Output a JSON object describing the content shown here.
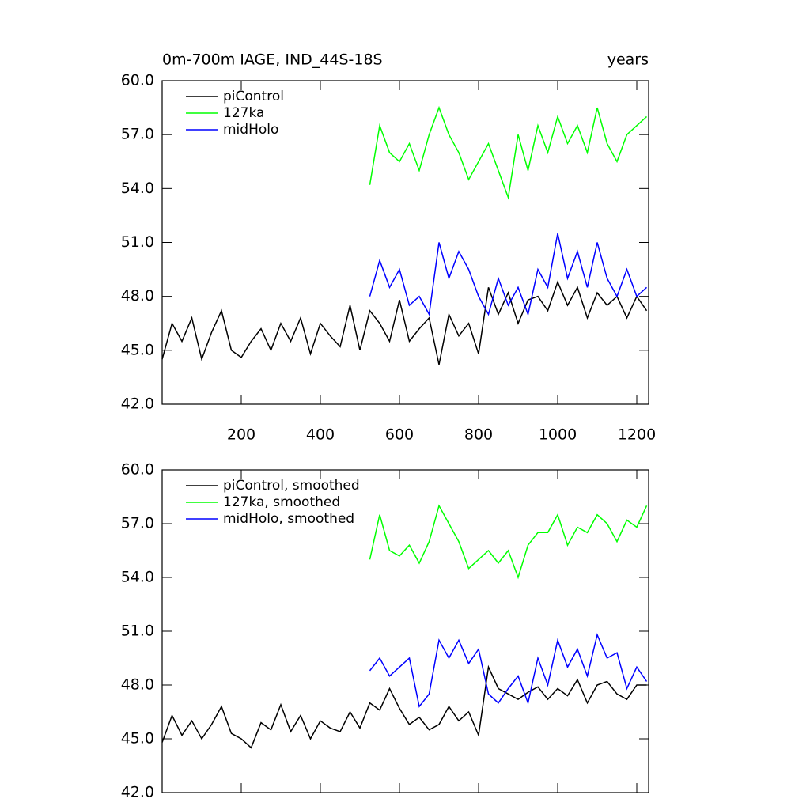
{
  "chart_data": [
    {
      "type": "line",
      "title": "0m-700m IAGE, IND_44S-18S",
      "right_title": "years",
      "x": [
        0,
        25,
        50,
        75,
        100,
        125,
        150,
        175,
        200,
        225,
        250,
        275,
        300,
        325,
        350,
        375,
        400,
        425,
        450,
        475,
        500,
        525,
        550,
        575,
        600,
        625,
        650,
        675,
        700,
        725,
        750,
        775,
        800,
        825,
        850,
        875,
        900,
        925,
        950,
        975,
        1000,
        1025,
        1050,
        1075,
        1100,
        1125,
        1150,
        1175,
        1200,
        1225
      ],
      "series": [
        {
          "name": "piControl",
          "color": "#000000",
          "values": [
            44.5,
            46.5,
            45.5,
            46.8,
            44.5,
            46.0,
            47.2,
            45.0,
            44.6,
            45.5,
            46.2,
            45.0,
            46.5,
            45.5,
            46.8,
            44.8,
            46.5,
            45.8,
            45.2,
            47.5,
            45.0,
            47.2,
            46.5,
            45.5,
            47.8,
            45.5,
            46.2,
            46.8,
            44.2,
            47.0,
            45.8,
            46.5,
            44.8,
            48.5,
            47.0,
            48.2,
            46.5,
            47.8,
            48.0,
            47.2,
            48.8,
            47.5,
            48.5,
            46.8,
            48.2,
            47.5,
            48.0,
            46.8,
            48.0,
            47.2
          ]
        },
        {
          "name": "127ka",
          "color": "#00ff00",
          "values": [
            null,
            null,
            null,
            null,
            null,
            null,
            null,
            null,
            null,
            null,
            null,
            null,
            null,
            null,
            null,
            null,
            null,
            null,
            null,
            null,
            null,
            54.2,
            57.5,
            56.0,
            55.5,
            56.5,
            55.0,
            57.0,
            58.5,
            57.0,
            56.0,
            54.5,
            55.5,
            56.5,
            55.0,
            53.5,
            57.0,
            55.0,
            57.5,
            56.0,
            58.0,
            56.5,
            57.5,
            56.0,
            58.5,
            56.5,
            55.5,
            57.0,
            57.5,
            58.0
          ]
        },
        {
          "name": "midHolo",
          "color": "#0000ff",
          "values": [
            null,
            null,
            null,
            null,
            null,
            null,
            null,
            null,
            null,
            null,
            null,
            null,
            null,
            null,
            null,
            null,
            null,
            null,
            null,
            null,
            null,
            48.0,
            50.0,
            48.5,
            49.5,
            47.5,
            48.0,
            47.0,
            51.0,
            49.0,
            50.5,
            49.5,
            48.0,
            47.0,
            49.0,
            47.5,
            48.5,
            47.0,
            49.5,
            48.5,
            51.5,
            49.0,
            50.5,
            48.5,
            51.0,
            49.0,
            48.0,
            49.5,
            48.0,
            48.5
          ]
        }
      ],
      "xlim": [
        0,
        1230
      ],
      "xticks": [
        200,
        400,
        600,
        800,
        1000,
        1200
      ],
      "xtick_labels": true,
      "ylim": [
        42,
        60
      ],
      "yticks": [
        {
          "value": 42,
          "label": "42.0"
        },
        {
          "value": 45,
          "label": "45.0"
        },
        {
          "value": 48,
          "label": "48.0"
        },
        {
          "value": 51,
          "label": "51.0"
        },
        {
          "value": 54,
          "label": "54.0"
        },
        {
          "value": 57,
          "label": "57.0"
        },
        {
          "value": 60,
          "label": "60.0"
        }
      ],
      "legend": "top-left"
    },
    {
      "type": "line",
      "x": [
        0,
        25,
        50,
        75,
        100,
        125,
        150,
        175,
        200,
        225,
        250,
        275,
        300,
        325,
        350,
        375,
        400,
        425,
        450,
        475,
        500,
        525,
        550,
        575,
        600,
        625,
        650,
        675,
        700,
        725,
        750,
        775,
        800,
        825,
        850,
        875,
        900,
        925,
        950,
        975,
        1000,
        1025,
        1050,
        1075,
        1100,
        1125,
        1150,
        1175,
        1200,
        1225
      ],
      "series": [
        {
          "name": "piControl, smoothed",
          "color": "#000000",
          "values": [
            44.8,
            46.3,
            45.2,
            46.0,
            45.0,
            45.8,
            46.8,
            45.3,
            45.0,
            44.5,
            45.9,
            45.5,
            46.9,
            45.4,
            46.3,
            45.0,
            46.0,
            45.6,
            45.4,
            46.5,
            45.6,
            47.0,
            46.6,
            47.8,
            46.7,
            45.8,
            46.2,
            45.5,
            45.8,
            46.8,
            46.0,
            46.5,
            45.2,
            49.0,
            47.8,
            47.5,
            47.2,
            47.6,
            47.9,
            47.2,
            47.8,
            47.4,
            48.3,
            47.0,
            48.0,
            48.2,
            47.5,
            47.2,
            48.0,
            48.0
          ]
        },
        {
          "name": "127ka, smoothed",
          "color": "#00ff00",
          "values": [
            null,
            null,
            null,
            null,
            null,
            null,
            null,
            null,
            null,
            null,
            null,
            null,
            null,
            null,
            null,
            null,
            null,
            null,
            null,
            null,
            null,
            55.0,
            57.5,
            55.5,
            55.2,
            55.8,
            54.8,
            56.0,
            58.0,
            57.0,
            56.0,
            54.5,
            55.0,
            55.5,
            54.8,
            55.5,
            54.0,
            55.8,
            56.5,
            56.5,
            57.5,
            55.8,
            56.8,
            56.5,
            57.5,
            57.0,
            56.0,
            57.2,
            56.8,
            58.0
          ]
        },
        {
          "name": "midHolo, smoothed",
          "color": "#0000ff",
          "values": [
            null,
            null,
            null,
            null,
            null,
            null,
            null,
            null,
            null,
            null,
            null,
            null,
            null,
            null,
            null,
            null,
            null,
            null,
            null,
            null,
            null,
            48.8,
            49.5,
            48.5,
            49.0,
            49.5,
            46.8,
            47.5,
            50.5,
            49.5,
            50.5,
            49.2,
            50.0,
            47.5,
            47.0,
            47.8,
            48.5,
            47.0,
            49.5,
            48.0,
            50.5,
            49.0,
            50.0,
            48.5,
            50.8,
            49.5,
            49.8,
            47.8,
            49.0,
            48.2
          ]
        }
      ],
      "xlim": [
        0,
        1230
      ],
      "xticks": [
        200,
        400,
        600,
        800,
        1000,
        1200
      ],
      "xtick_labels": false,
      "ylim": [
        42,
        60
      ],
      "yticks": [
        {
          "value": 42,
          "label": "42.0"
        },
        {
          "value": 45,
          "label": "45.0"
        },
        {
          "value": 48,
          "label": "48.0"
        },
        {
          "value": 51,
          "label": "51.0"
        },
        {
          "value": 54,
          "label": "54.0"
        },
        {
          "value": 57,
          "label": "57.0"
        },
        {
          "value": 60,
          "label": "60.0"
        }
      ],
      "legend": "top-left"
    }
  ]
}
